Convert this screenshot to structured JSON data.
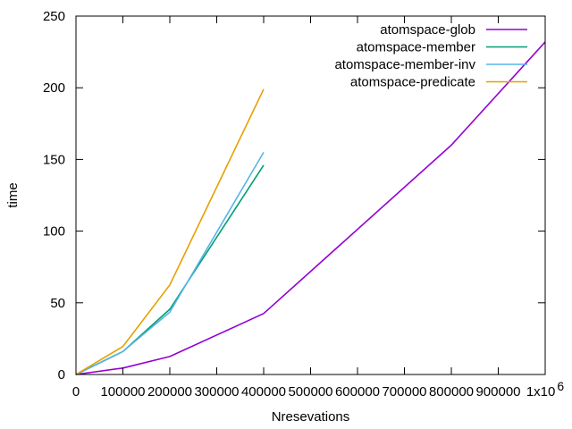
{
  "chart_data": {
    "type": "line",
    "xlabel": "Nresevations",
    "ylabel": "time",
    "xlim": [
      0,
      1000000
    ],
    "ylim": [
      0,
      250
    ],
    "xticks": [
      {
        "v": 0,
        "label": "0"
      },
      {
        "v": 100000,
        "label": "100000"
      },
      {
        "v": 200000,
        "label": "200000"
      },
      {
        "v": 300000,
        "label": "300000"
      },
      {
        "v": 400000,
        "label": "400000"
      },
      {
        "v": 500000,
        "label": "500000"
      },
      {
        "v": 600000,
        "label": "600000"
      },
      {
        "v": 700000,
        "label": "700000"
      },
      {
        "v": 800000,
        "label": "800000"
      },
      {
        "v": 900000,
        "label": "900000"
      },
      {
        "v": 1000000,
        "label": "1x10",
        "sup": "6"
      }
    ],
    "yticks": [
      0,
      50,
      100,
      150,
      200,
      250
    ],
    "grid": false,
    "legend_position": "top-right",
    "series": [
      {
        "name": "atomspace-glob",
        "color": "#9400d3",
        "x": [
          0,
          100000,
          200000,
          400000,
          800000,
          1000000
        ],
        "y": [
          0,
          4.5,
          12.5,
          42.5,
          160,
          232
        ]
      },
      {
        "name": "atomspace-member",
        "color": "#009e73",
        "x": [
          0,
          100000,
          200000,
          400000
        ],
        "y": [
          0,
          16,
          45.5,
          146
        ]
      },
      {
        "name": "atomspace-member-inv",
        "color": "#56b4e9",
        "x": [
          0,
          100000,
          200000,
          400000
        ],
        "y": [
          0,
          16,
          43.5,
          155
        ]
      },
      {
        "name": "atomspace-predicate",
        "color": "#e69f00",
        "x": [
          0,
          100000,
          200000,
          400000
        ],
        "y": [
          0,
          19.5,
          62.5,
          199
        ]
      }
    ]
  }
}
